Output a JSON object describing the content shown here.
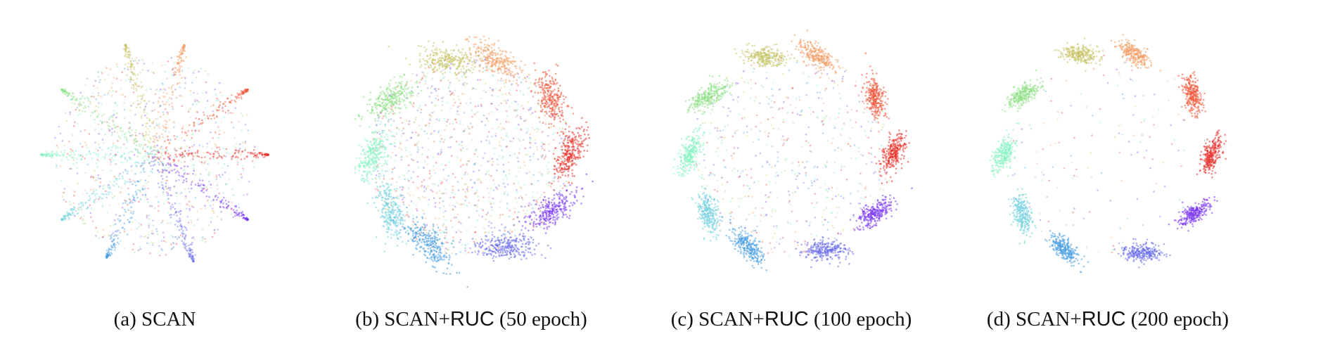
{
  "figure": {
    "panels": [
      {
        "prefix": "(a) SCAN",
        "ruc": "",
        "suffix": ""
      },
      {
        "prefix": "(b) SCAN+",
        "ruc": "RUC",
        "suffix": " (50 epoch)"
      },
      {
        "prefix": "(c) SCAN+",
        "ruc": "RUC",
        "suffix": " (100 epoch)"
      },
      {
        "prefix": "(d) SCAN+",
        "ruc": "RUC",
        "suffix": " (200 epoch)"
      }
    ]
  },
  "chart_data": [
    {
      "type": "scatter",
      "panel": "(a) SCAN",
      "n_clusters": 10,
      "cluster_colors": [
        "#e8302a",
        "#f0563a",
        "#f2a06a",
        "#c9c46a",
        "#8fe089",
        "#86f2c3",
        "#76d2de",
        "#4a9fe0",
        "#6a6ee8",
        "#7a36f0"
      ],
      "cluster_angles_deg": [
        0,
        35,
        75,
        105,
        145,
        180,
        215,
        245,
        290,
        325
      ],
      "spread": 0.85,
      "points_per_cluster": 140,
      "cluster_center_radius": 0.55,
      "background_fraction": 0.6,
      "shape": "scattered-star"
    },
    {
      "type": "scatter",
      "panel": "(b) SCAN+RUC (50 epoch)",
      "n_clusters": 10,
      "cluster_colors": [
        "#e8302a",
        "#f0563a",
        "#f2a06a",
        "#c9c46a",
        "#8fe089",
        "#86f2c3",
        "#76d2de",
        "#4a9fe0",
        "#6a6ee8",
        "#7a36f0"
      ],
      "cluster_angles_deg": [
        0,
        35,
        75,
        105,
        145,
        180,
        215,
        245,
        290,
        325
      ],
      "spread": 0.12,
      "points_per_cluster": 260,
      "cluster_center_radius": 0.82,
      "background_fraction": 0.45,
      "shape": "clustered-ring"
    },
    {
      "type": "scatter",
      "panel": "(c) SCAN+RUC (100 epoch)",
      "n_clusters": 10,
      "cluster_colors": [
        "#e8302a",
        "#f0563a",
        "#f2a06a",
        "#c9c46a",
        "#8fe089",
        "#86f2c3",
        "#76d2de",
        "#4a9fe0",
        "#6a6ee8",
        "#7a36f0"
      ],
      "cluster_angles_deg": [
        0,
        35,
        75,
        105,
        145,
        180,
        215,
        245,
        290,
        325
      ],
      "spread": 0.09,
      "points_per_cluster": 260,
      "cluster_center_radius": 0.85,
      "background_fraction": 0.22,
      "shape": "clustered-ring"
    },
    {
      "type": "scatter",
      "panel": "(d) SCAN+RUC (200 epoch)",
      "n_clusters": 10,
      "cluster_colors": [
        "#e8302a",
        "#f0563a",
        "#f2a06a",
        "#c9c46a",
        "#8fe089",
        "#86f2c3",
        "#76d2de",
        "#4a9fe0",
        "#6a6ee8",
        "#7a36f0"
      ],
      "cluster_angles_deg": [
        0,
        35,
        75,
        105,
        145,
        180,
        215,
        245,
        290,
        325
      ],
      "spread": 0.08,
      "points_per_cluster": 260,
      "cluster_center_radius": 0.87,
      "background_fraction": 0.06,
      "shape": "clustered-ring"
    }
  ]
}
